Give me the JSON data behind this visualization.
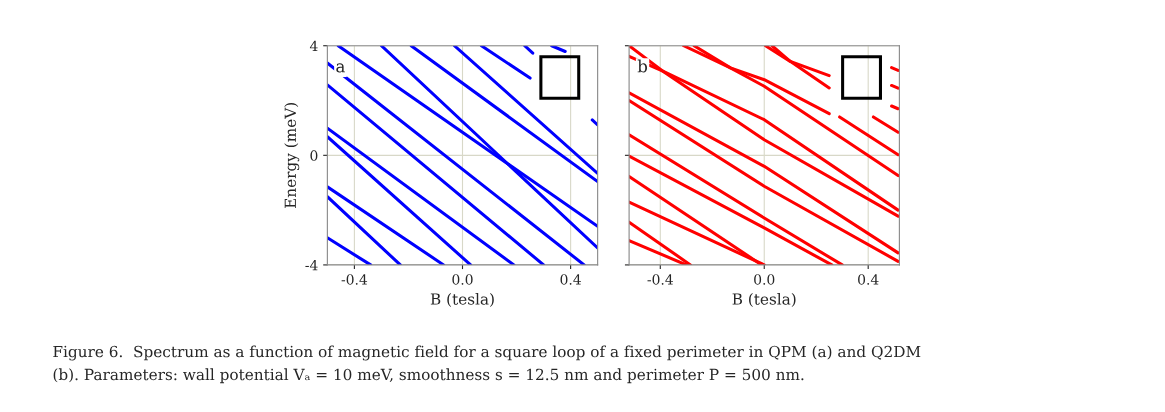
{
  "chart_data": [
    {
      "type": "line",
      "ylabel": "Energy (meV)",
      "xlabel": "B (tesla)",
      "xlim": [
        -0.5,
        0.5
      ],
      "xticks": [
        {
          "value": -0.4,
          "label": "-0.4"
        },
        {
          "value": 0.0,
          "label": "0.0"
        },
        {
          "value": 0.4,
          "label": "0.4"
        }
      ],
      "ylim": [
        -4,
        4
      ],
      "yticks": [
        -4,
        0,
        4
      ],
      "grid": true,
      "marker": "none",
      "line_style": "solid",
      "annotations": [
        "a",
        "Figure 6.  Spectrum as a function of magnetic field for a square loop of a fixed perimeter in QPM (a) and Q2DM",
        "(b). Parameters: wall potential Vₐ = 10 meV, smoothness s = 12.5 nm and perimeter P = 500 nm."
      ],
      "series": [
        {
          "color": "#0000ff",
          "x": [
            -0.46,
            0.5
          ],
          "values": [
            4,
            -2.59
          ]
        },
        {
          "color": "#0000ff",
          "x": [
            -0.3,
            0.5
          ],
          "values": [
            4,
            -3.38
          ]
        },
        {
          "color": "#0000ff",
          "x": [
            -0.19,
            0.5
          ],
          "values": [
            4,
            -0.96
          ]
        },
        {
          "color": "#0000ff",
          "x": [
            -0.03,
            0.5
          ],
          "values": [
            4,
            -0.66
          ]
        },
        {
          "color": "#0000ff",
          "x": [
            0.07,
            0.25
          ],
          "values": [
            4,
            2.82
          ]
        },
        {
          "color": "#0000ff",
          "x": [
            0.23,
            0.26
          ],
          "values": [
            4,
            3.73
          ]
        },
        {
          "color": "#0000ff",
          "x": [
            0.33,
            0.38
          ],
          "values": [
            4,
            3.79
          ]
        },
        {
          "color": "#0000ff",
          "x": [
            -0.5,
            0.45
          ],
          "values": [
            3.37,
            -4
          ]
        },
        {
          "color": "#0000ff",
          "x": [
            -0.5,
            0.3
          ],
          "values": [
            2.57,
            -4
          ]
        },
        {
          "color": "#0000ff",
          "x": [
            -0.5,
            0.19
          ],
          "values": [
            0.99,
            -4
          ]
        },
        {
          "color": "#0000ff",
          "x": [
            -0.5,
            0.03
          ],
          "values": [
            0.68,
            -4
          ]
        },
        {
          "color": "#0000ff",
          "x": [
            -0.5,
            -0.07
          ],
          "values": [
            -1.15,
            -4
          ]
        },
        {
          "color": "#0000ff",
          "x": [
            -0.5,
            -0.23
          ],
          "values": [
            -1.51,
            -4
          ]
        },
        {
          "color": "#0000ff",
          "x": [
            -0.5,
            -0.34
          ],
          "values": [
            -3.01,
            -4
          ]
        },
        {
          "color": "#0000ff",
          "x": [
            0.48,
            0.5
          ],
          "values": [
            1.29,
            1.11
          ]
        }
      ]
    },
    {
      "type": "line",
      "xlabel": "B (tesla)",
      "xlim": [
        -0.52,
        0.52
      ],
      "xticks": [
        {
          "value": -0.4,
          "label": "-0.4"
        },
        {
          "value": 0.0,
          "label": "0.0"
        },
        {
          "value": 0.4,
          "label": "0.4"
        }
      ],
      "ylim": [
        -4,
        4
      ],
      "yticks": [
        -4,
        0,
        4
      ],
      "tick_labels": "x",
      "grid": true,
      "marker": "none",
      "line_style": "solid",
      "annotations": [
        "b"
      ],
      "series": [
        {
          "color": "#ff0000",
          "x": [
            -0.52,
            -0.39,
            0.0,
            0.515
          ],
          "values": [
            4,
            3.07,
            0.57,
            -2.22
          ]
        },
        {
          "color": "#ff0000",
          "x": [
            -0.52,
            -0.39,
            0.0,
            0.515
          ],
          "values": [
            3.61,
            3.07,
            1.3,
            -2.0
          ]
        },
        {
          "color": "#ff0000",
          "x": [
            -0.31,
            -0.13,
            0.0,
            0.25
          ],
          "values": [
            4,
            3.19,
            2.76,
            1.52
          ]
        },
        {
          "color": "#ff0000",
          "x": [
            0.29,
            0.515
          ],
          "values": [
            1.4,
            0.02
          ]
        },
        {
          "color": "#ff0000",
          "x": [
            -0.27,
            -0.13,
            0.0,
            0.515
          ],
          "values": [
            4,
            3.19,
            2.52,
            -0.74
          ]
        },
        {
          "color": "#ff0000",
          "x": [
            -0.52,
            0.0,
            0.515
          ],
          "values": [
            2.28,
            -0.4,
            -3.56
          ]
        },
        {
          "color": "#ff0000",
          "x": [
            -0.52,
            0.0,
            0.515
          ],
          "values": [
            2.0,
            -1.13,
            -3.87
          ]
        },
        {
          "color": "#ff0000",
          "x": [
            -0.52,
            0.0,
            0.3
          ],
          "values": [
            0.75,
            -2.29,
            -4
          ]
        },
        {
          "color": "#ff0000",
          "x": [
            -0.52,
            0.0,
            0.26
          ],
          "values": [
            -0.03,
            -2.65,
            -4
          ]
        },
        {
          "color": "#ff0000",
          "x": [
            -0.52,
            -0.01
          ],
          "values": [
            -0.77,
            -4
          ]
        },
        {
          "color": "#ff0000",
          "x": [
            -0.52,
            0.0
          ],
          "values": [
            -1.71,
            -4
          ]
        },
        {
          "color": "#ff0000",
          "x": [
            -0.52,
            -0.284
          ],
          "values": [
            -2.44,
            -4
          ]
        },
        {
          "color": "#ff0000",
          "x": [
            -0.52,
            -0.3
          ],
          "values": [
            -3.11,
            -4
          ]
        },
        {
          "color": "#ff0000",
          "x": [
            0.005,
            0.1,
            0.25
          ],
          "values": [
            4,
            3.43,
            2.91
          ]
        },
        {
          "color": "#ff0000",
          "x": [
            0.03,
            0.1,
            0.25
          ],
          "values": [
            4,
            3.43,
            2.46
          ]
        },
        {
          "color": "#ff0000",
          "x": [
            0.42,
            0.515
          ],
          "values": [
            1.4,
            0.84
          ]
        },
        {
          "color": "#ff0000",
          "x": [
            0.49,
            0.515
          ],
          "values": [
            3.2,
            3.1
          ]
        },
        {
          "color": "#ff0000",
          "x": [
            0.49,
            0.515
          ],
          "values": [
            2.55,
            2.45
          ]
        },
        {
          "color": "#ff0000",
          "x": [
            0.49,
            0.515
          ],
          "values": [
            1.8,
            1.7
          ]
        }
      ]
    }
  ]
}
